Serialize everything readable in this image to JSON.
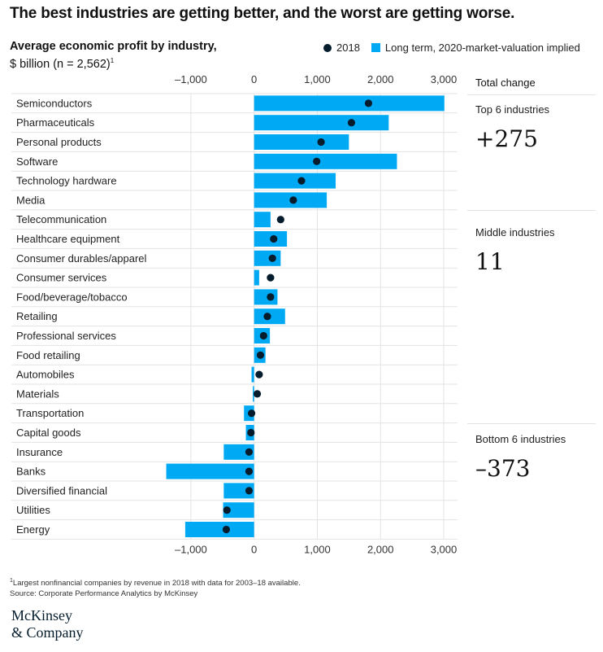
{
  "headline": "The best industries are getting better, and the worst are getting worse.",
  "subtitle_line1": "Average economic profit by industry,",
  "subtitle_line2": "$ billion (n = 2,562)",
  "subtitle_footnote_mark": "1",
  "legend": {
    "dot_label": "2018",
    "bar_label": "Long term, 2020-market-valuation implied"
  },
  "colors": {
    "bar": "#00a9f4",
    "dot": "#051c2c",
    "grid": "#e3e3e3",
    "logo": "#051c2c"
  },
  "chart_data": {
    "type": "bar",
    "orientation": "horizontal",
    "xlim": [
      -1500,
      3000
    ],
    "x_ticks": [
      -1000,
      0,
      1000,
      2000,
      3000
    ],
    "x_tick_labels": [
      "–1,000",
      "0",
      "1,000",
      "2,000",
      "3,000"
    ],
    "grid": true,
    "categories": [
      "Semiconductors",
      "Pharmaceuticals",
      "Personal products",
      "Software",
      "Technology hardware",
      "Media",
      "Telecommunication",
      "Healthcare equipment",
      "Consumer durables/apparel",
      "Consumer services",
      "Food/beverage/tobacco",
      "Retailing",
      "Professional services",
      "Food retailing",
      "Automobiles",
      "Materials",
      "Transportation",
      "Capital goods",
      "Insurance",
      "Banks",
      "Diversified financial",
      "Utilities",
      "Energy"
    ],
    "series": [
      {
        "name": "Long term, 2020-market-valuation implied",
        "kind": "bar",
        "values": [
          3010,
          2130,
          1500,
          2260,
          1290,
          1150,
          260,
          520,
          420,
          80,
          370,
          490,
          250,
          180,
          -40,
          -20,
          -160,
          -130,
          -480,
          -1390,
          -480,
          -490,
          -1090
        ]
      },
      {
        "name": "2018",
        "kind": "dot",
        "values": [
          1810,
          1540,
          1060,
          990,
          750,
          620,
          420,
          310,
          290,
          260,
          260,
          210,
          150,
          100,
          80,
          50,
          -40,
          -50,
          -80,
          -80,
          -80,
          -430,
          -440
        ]
      }
    ]
  },
  "summary": {
    "title": "Total change",
    "groups": [
      {
        "label": "Top 6 industries",
        "value": "+275"
      },
      {
        "label": "Middle industries",
        "value": "11"
      },
      {
        "label": "Bottom 6 industries",
        "value": "–373"
      }
    ]
  },
  "footnote": {
    "mark": "1",
    "line1": "Largest nonfinancial companies by revenue in 2018 with data for 2003–18 available.",
    "line2": "Source: Corporate Performance Analytics by McKinsey"
  },
  "logo": {
    "line1": "McKinsey",
    "line2": "& Company"
  }
}
